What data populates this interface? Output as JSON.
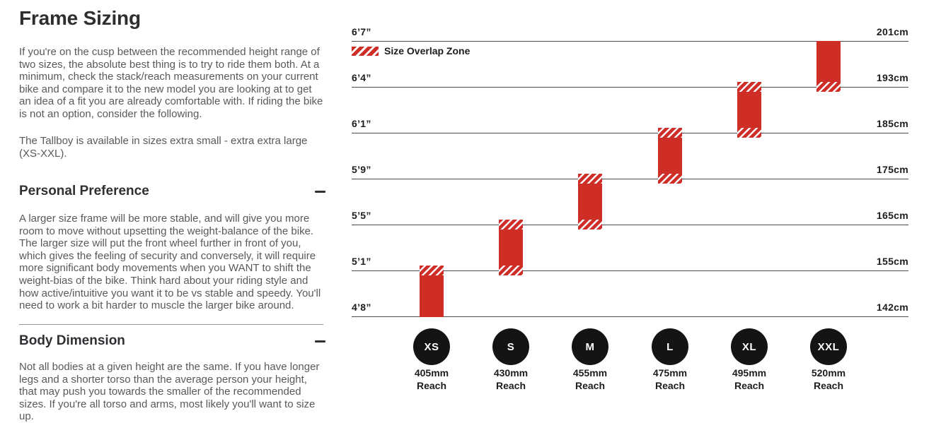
{
  "article": {
    "title": "Frame Sizing",
    "intro": "If you're on the cusp between the recommended height range of two sizes, the absolute best thing is to try to ride them both. At a minimum, check the stack/reach measurements on your current bike and compare it to the new model you are looking at to get an idea of a fit you are already comfortable with. If riding the bike is not an option, consider the following.",
    "availability": "The Tallboy is available in sizes extra small - extra extra large (XS-XXL).",
    "sections": [
      {
        "heading": "Personal Preference",
        "toggle_state": "expanded",
        "body": "A larger size frame will be more stable, and will give you more room to move without upsetting the weight-balance of the bike. The larger size will put the front wheel further in front of you, which gives the feeling of security and conversely, it will require more significant body movements when you WANT to shift the weight-bias of the bike. Think hard about your riding style and how active/intuitive you want it to be vs stable and speedy. You'll need to work a bit harder to muscle the larger bike around."
      },
      {
        "heading": "Body Dimension",
        "toggle_state": "expanded",
        "body": "Not all bodies at a given height are the same. If you have longer legs and a shorter torso than the average person your height, that may push you towards the smaller of the recommended sizes. If you're all torso and arms, most likely you'll want to size up."
      }
    ]
  },
  "chart_data": {
    "type": "range-bar",
    "title": "Tallboy rider height range by frame size",
    "legend": {
      "label": "Size Overlap Zone"
    },
    "colors": {
      "bar": "#cf2e26",
      "gridline": "#4c4c4e",
      "circle": "#141414",
      "label": "#1e1c1c"
    },
    "ticks": [
      {
        "imperial": "4’8”",
        "metric": "142cm"
      },
      {
        "imperial": "5’1”",
        "metric": "155cm"
      },
      {
        "imperial": "5’5”",
        "metric": "165cm"
      },
      {
        "imperial": "5’9”",
        "metric": "175cm"
      },
      {
        "imperial": "6’1”",
        "metric": "185cm"
      },
      {
        "imperial": "6’4”",
        "metric": "193cm"
      },
      {
        "imperial": "6’7”",
        "metric": "201cm"
      }
    ],
    "sizes": [
      {
        "label": "XS",
        "reach": "405mm",
        "reach_unit": "Reach",
        "height_range_imperial": "4’8”-5’1”",
        "height_range_metric": "142-155cm",
        "tick_from": 0,
        "tick_to": 1,
        "overlap_top": true,
        "overlap_bottom": false
      },
      {
        "label": "S",
        "reach": "430mm",
        "reach_unit": "Reach",
        "height_range_imperial": "5’1”-5’5”",
        "height_range_metric": "155-165cm",
        "tick_from": 1,
        "tick_to": 2,
        "overlap_top": true,
        "overlap_bottom": true
      },
      {
        "label": "M",
        "reach": "455mm",
        "reach_unit": "Reach",
        "height_range_imperial": "5’5”-5’9”",
        "height_range_metric": "165-175cm",
        "tick_from": 2,
        "tick_to": 3,
        "overlap_top": true,
        "overlap_bottom": true
      },
      {
        "label": "L",
        "reach": "475mm",
        "reach_unit": "Reach",
        "height_range_imperial": "5’9”-6’1”",
        "height_range_metric": "175-185cm",
        "tick_from": 3,
        "tick_to": 4,
        "overlap_top": true,
        "overlap_bottom": true
      },
      {
        "label": "XL",
        "reach": "495mm",
        "reach_unit": "Reach",
        "height_range_imperial": "6’1”-6’4”",
        "height_range_metric": "185-193cm",
        "tick_from": 4,
        "tick_to": 5,
        "overlap_top": true,
        "overlap_bottom": true
      },
      {
        "label": "XXL",
        "reach": "520mm",
        "reach_unit": "Reach",
        "height_range_imperial": "6’4”-6’7”",
        "height_range_metric": "193-201cm",
        "tick_from": 5,
        "tick_to": 6,
        "overlap_top": false,
        "overlap_bottom": true
      }
    ],
    "layout_hints": {
      "grid": "horizontal",
      "legend_position": "top-left",
      "left_axis": "feet/inches",
      "right_axis": "centimeters"
    }
  }
}
